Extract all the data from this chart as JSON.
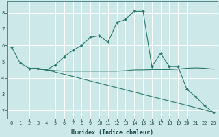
{
  "xlabel": "Humidex (Indice chaleur)",
  "background_color": "#cce8e8",
  "plot_bg_color": "#cce8e8",
  "grid_color": "#ffffff",
  "line_color": "#2a7a6a",
  "xlim": [
    -0.5,
    23.5
  ],
  "ylim": [
    1.5,
    8.7
  ],
  "line1_x": [
    0,
    1,
    2,
    3,
    4,
    5,
    6,
    7,
    8,
    9,
    10,
    11,
    12,
    13,
    14,
    15,
    16,
    17,
    18,
    19,
    20,
    21,
    22,
    23
  ],
  "line1_y": [
    5.9,
    4.9,
    4.6,
    4.6,
    4.5,
    4.8,
    5.3,
    5.7,
    6.0,
    6.5,
    6.6,
    6.2,
    7.4,
    7.6,
    8.1,
    8.1,
    4.7,
    5.5,
    4.7,
    4.7,
    3.3,
    2.85,
    2.3,
    1.9
  ],
  "line2_x": [
    3,
    4,
    5,
    6,
    7,
    8,
    9,
    10,
    11,
    12,
    13,
    14,
    15,
    16,
    17,
    18,
    19,
    20,
    21,
    22,
    23
  ],
  "line2_y": [
    4.55,
    4.5,
    4.45,
    4.42,
    4.42,
    4.42,
    4.42,
    4.42,
    4.42,
    4.42,
    4.45,
    4.5,
    4.5,
    4.52,
    4.52,
    4.52,
    4.55,
    4.6,
    4.62,
    4.6,
    4.55
  ],
  "line3_x": [
    3,
    4,
    23
  ],
  "line3_y": [
    4.55,
    4.5,
    1.9
  ],
  "yticks": [
    2,
    3,
    4,
    5,
    6,
    7,
    8
  ],
  "xticks": [
    0,
    1,
    2,
    3,
    4,
    5,
    6,
    7,
    8,
    9,
    10,
    11,
    12,
    13,
    14,
    15,
    16,
    17,
    18,
    19,
    20,
    21,
    22,
    23
  ],
  "xlabel_fontsize": 6.0,
  "tick_fontsize": 5.0
}
